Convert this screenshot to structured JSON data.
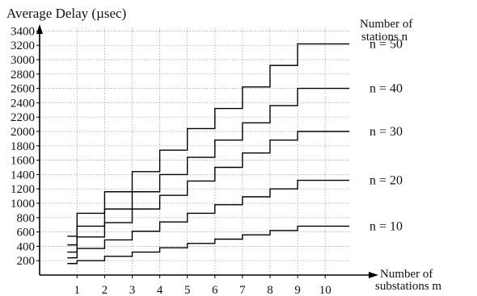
{
  "chart_data": {
    "type": "line",
    "step": true,
    "ylabel": "Average Delay (µsec)",
    "xlabel_line1": "Number of",
    "xlabel_line2": "substations m",
    "legend_title_line1": "Number of",
    "legend_title_line2": "stations n",
    "x_ticks": [
      1,
      2,
      3,
      4,
      5,
      6,
      7,
      8,
      9,
      10
    ],
    "y_ticks": [
      200,
      400,
      600,
      800,
      1000,
      1200,
      1400,
      1600,
      1800,
      2000,
      2200,
      2400,
      2600,
      2800,
      3000,
      3200,
      3400
    ],
    "xlim": [
      0,
      10.8
    ],
    "ylim": [
      0,
      3450
    ],
    "grid": true,
    "legend_placement": "right",
    "series": [
      {
        "name": "n = 10",
        "values": [
          160,
          200,
          260,
          320,
          380,
          440,
          500,
          560,
          620,
          680
        ]
      },
      {
        "name": "n = 20",
        "values": [
          240,
          370,
          490,
          610,
          740,
          860,
          980,
          1090,
          1200,
          1320
        ]
      },
      {
        "name": "n = 30",
        "values": [
          320,
          530,
          730,
          920,
          1110,
          1310,
          1500,
          1700,
          1880,
          2000
        ]
      },
      {
        "name": "n = 40",
        "values": [
          420,
          680,
          920,
          1160,
          1400,
          1640,
          1880,
          2120,
          2360,
          2600
        ]
      },
      {
        "name": "n = 50",
        "values": [
          540,
          860,
          1160,
          1440,
          1740,
          2040,
          2320,
          2620,
          2920,
          3220
        ]
      }
    ]
  }
}
